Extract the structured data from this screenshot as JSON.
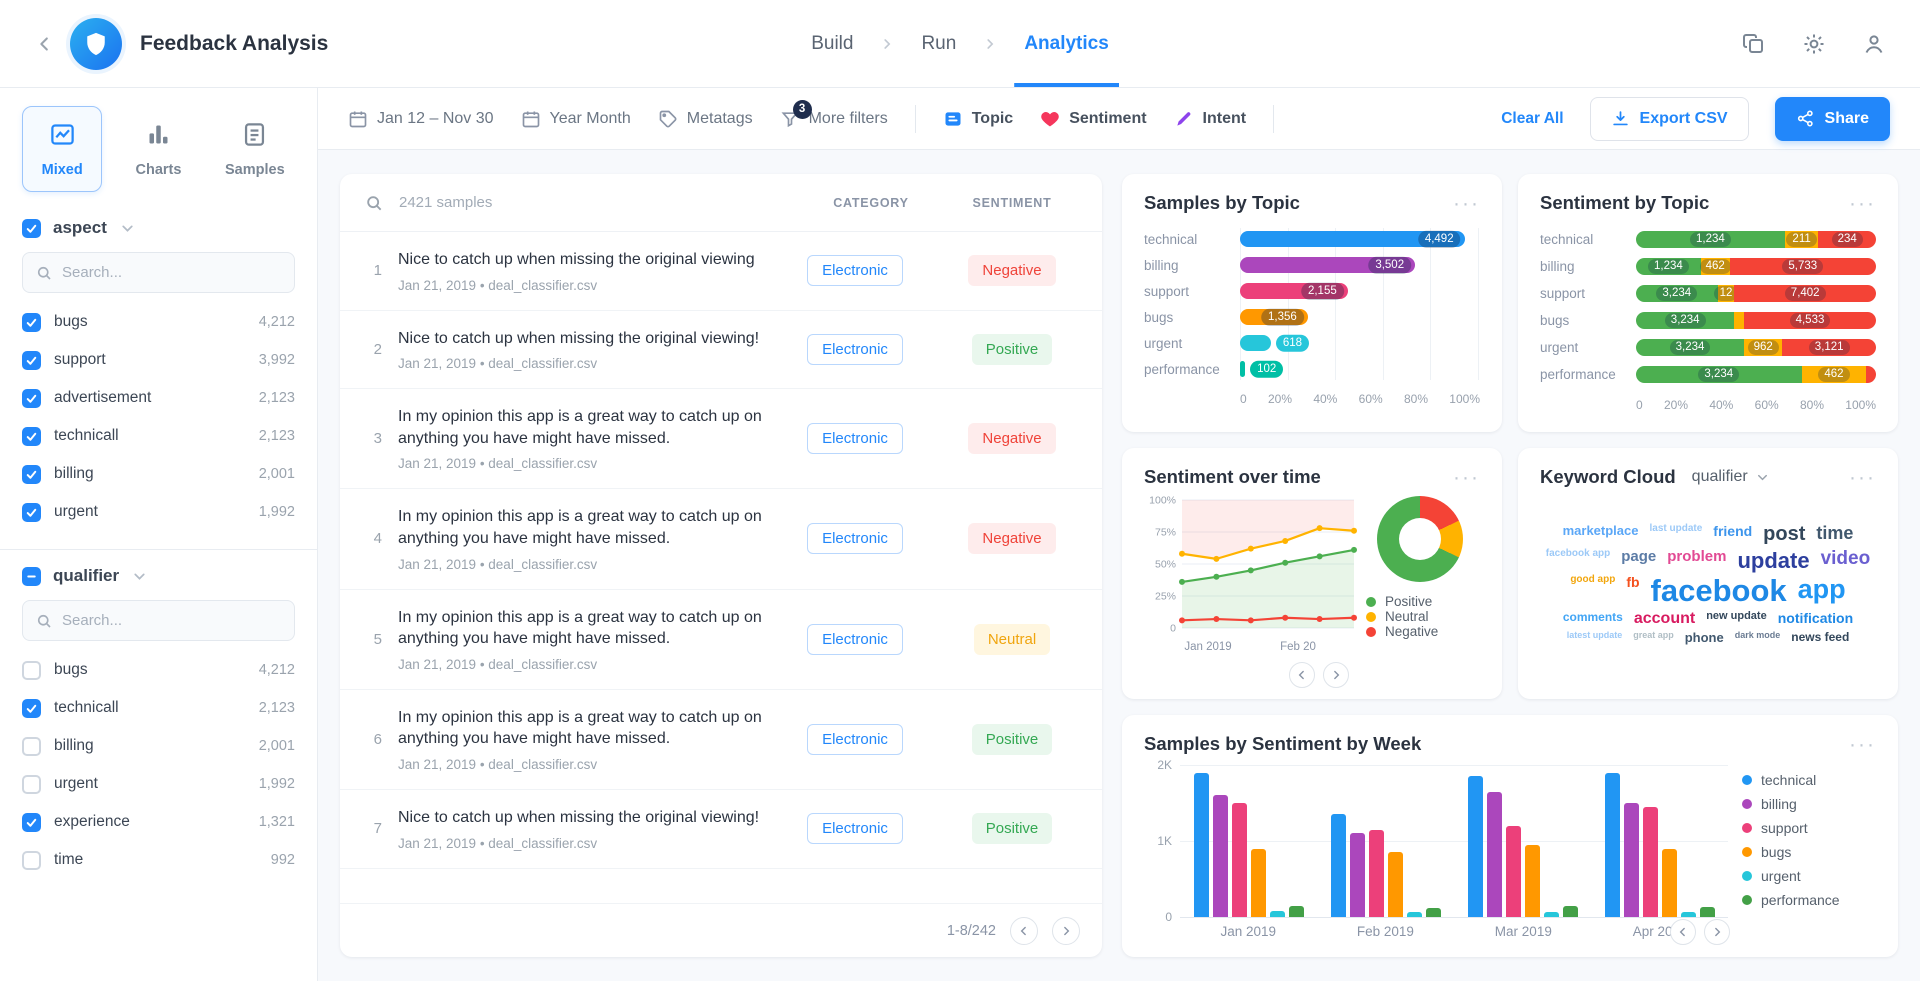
{
  "colors": {
    "accent": "#2287fa",
    "positive": "#4caf50",
    "neutral": "#ffb300",
    "negative": "#f44336"
  },
  "header": {
    "title": "Feedback Analysis",
    "nav": [
      {
        "label": "Build",
        "active": false
      },
      {
        "label": "Run",
        "active": false
      },
      {
        "label": "Analytics",
        "active": true
      }
    ]
  },
  "toolbar": {
    "date_range": "Jan 12 – Nov 30",
    "granularity": "Year Month",
    "metatags_label": "Metatags",
    "more_filters_label": "More filters",
    "more_filters_badge": "3",
    "facet_topic": "Topic",
    "facet_sentiment": "Sentiment",
    "facet_intent": "Intent",
    "clear_all_label": "Clear All",
    "export_label": "Export CSV",
    "share_label": "Share"
  },
  "sidebar": {
    "views": [
      {
        "label": "Mixed",
        "active": true
      },
      {
        "label": "Charts",
        "active": false
      },
      {
        "label": "Samples",
        "active": false
      }
    ],
    "groups": [
      {
        "label": "aspect",
        "state": "checked",
        "search_placeholder": "Search...",
        "items": [
          {
            "label": "bugs",
            "count": "4,212",
            "checked": true
          },
          {
            "label": "support",
            "count": "3,992",
            "checked": true
          },
          {
            "label": "advertisement",
            "count": "2,123",
            "checked": true
          },
          {
            "label": "technicall",
            "count": "2,123",
            "checked": true
          },
          {
            "label": "billing",
            "count": "2,001",
            "checked": true
          },
          {
            "label": "urgent",
            "count": "1,992",
            "checked": true
          }
        ]
      },
      {
        "label": "qualifier",
        "state": "indeterminate",
        "search_placeholder": "Search...",
        "items": [
          {
            "label": "bugs",
            "count": "4,212",
            "checked": false
          },
          {
            "label": "technicall",
            "count": "2,123",
            "checked": true
          },
          {
            "label": "billing",
            "count": "2,001",
            "checked": false
          },
          {
            "label": "urgent",
            "count": "1,992",
            "checked": false
          },
          {
            "label": "experience",
            "count": "1,321",
            "checked": true
          },
          {
            "label": "time",
            "count": "992",
            "checked": false
          }
        ]
      }
    ]
  },
  "samples": {
    "count_label": "2421 samples",
    "col_category": "CATEGORY",
    "col_sentiment": "SENTIMENT",
    "pagination": "1-8/242",
    "rows": [
      {
        "num": "1",
        "text": "Nice to catch up when missing the original viewing",
        "meta": "Jan 21, 2019 • deal_classifier.csv",
        "category": "Electronic",
        "sentiment": "Negative"
      },
      {
        "num": "2",
        "text": "Nice to catch up when missing the original viewing!",
        "meta": "Jan 21, 2019 • deal_classifier.csv",
        "category": "Electronic",
        "sentiment": "Positive"
      },
      {
        "num": "3",
        "text": "In my opinion this app is a great way to catch up on anything you have might have missed.",
        "meta": "Jan 21, 2019 • deal_classifier.csv",
        "category": "Electronic",
        "sentiment": "Negative"
      },
      {
        "num": "4",
        "text": "In my opinion this app is a great way to catch up on anything you have might have missed.",
        "meta": "Jan 21, 2019 • deal_classifier.csv",
        "category": "Electronic",
        "sentiment": "Negative"
      },
      {
        "num": "5",
        "text": "In my opinion this app is a great way to catch up on anything you have might have missed.",
        "meta": "Jan 21, 2019 • deal_classifier.csv",
        "category": "Electronic",
        "sentiment": "Neutral"
      },
      {
        "num": "6",
        "text": "In my opinion this app is a great way to catch up on anything you have might have missed.",
        "meta": "Jan 21, 2019 • deal_classifier.csv",
        "category": "Electronic",
        "sentiment": "Positive"
      },
      {
        "num": "7",
        "text": "Nice to catch up when missing the original viewing!",
        "meta": "Jan 21, 2019 • deal_classifier.csv",
        "category": "Electronic",
        "sentiment": "Positive"
      }
    ]
  },
  "panels": {
    "samples_by_topic": {
      "title": "Samples by Topic",
      "chart_data": {
        "type": "bar",
        "orientation": "horizontal",
        "categories": [
          "technical",
          "billing",
          "support",
          "bugs",
          "urgent",
          "performance"
        ],
        "values": [
          4492,
          3502,
          2155,
          1356,
          618,
          102
        ],
        "value_labels": [
          "4,492",
          "3,502",
          "2,155",
          "1,356",
          "618",
          "102"
        ],
        "bar_colors": [
          "#2196f3",
          "#ab47bc",
          "#ec407a",
          "#ff9800",
          "#26c6da",
          "#00bfa5"
        ],
        "x_ticks": [
          "0",
          "20%",
          "40%",
          "60%",
          "80%",
          "100%"
        ],
        "xlim": [
          0,
          4800
        ]
      }
    },
    "sentiment_by_topic": {
      "title": "Sentiment by Topic",
      "chart_data": {
        "type": "stacked-bar",
        "series_names": [
          "Positive",
          "Neutral",
          "Negative"
        ],
        "x_ticks": [
          "0",
          "20%",
          "40%",
          "60%",
          "80%",
          "100%"
        ],
        "rows": [
          {
            "label": "technical",
            "segments": [
              {
                "value": "1,234",
                "pct": 62,
                "sentiment": "positive"
              },
              {
                "value": "211",
                "pct": 14,
                "sentiment": "neutral"
              },
              {
                "value": "234",
                "pct": 24,
                "sentiment": "negative"
              }
            ]
          },
          {
            "label": "billing",
            "segments": [
              {
                "value": "1,234",
                "pct": 27,
                "sentiment": "positive"
              },
              {
                "value": "462",
                "pct": 12,
                "sentiment": "neutral"
              },
              {
                "value": "5,733",
                "pct": 61,
                "sentiment": "negative"
              }
            ]
          },
          {
            "label": "support",
            "segments": [
              {
                "value": "3,234",
                "pct": 34,
                "sentiment": "positive"
              },
              {
                "value": "12",
                "pct": 7,
                "sentiment": "neutral"
              },
              {
                "value": "7,402",
                "pct": 59,
                "sentiment": "negative"
              }
            ]
          },
          {
            "label": "bugs",
            "segments": [
              {
                "value": "3,234",
                "pct": 41,
                "sentiment": "positive"
              },
              {
                "value": "",
                "pct": 4,
                "sentiment": "neutral"
              },
              {
                "value": "4,533",
                "pct": 55,
                "sentiment": "negative"
              }
            ]
          },
          {
            "label": "urgent",
            "segments": [
              {
                "value": "3,234",
                "pct": 45,
                "sentiment": "positive"
              },
              {
                "value": "962",
                "pct": 16,
                "sentiment": "neutral"
              },
              {
                "value": "3,121",
                "pct": 39,
                "sentiment": "negative"
              }
            ]
          },
          {
            "label": "performance",
            "segments": [
              {
                "value": "3,234",
                "pct": 69,
                "sentiment": "positive"
              },
              {
                "value": "462",
                "pct": 27,
                "sentiment": "neutral"
              },
              {
                "value": "",
                "pct": 4,
                "sentiment": "negative"
              }
            ]
          }
        ]
      }
    },
    "sentiment_over_time": {
      "title": "Sentiment over time",
      "chart_data": {
        "type": "line",
        "y_ticks": [
          "100%",
          "75%",
          "50%",
          "25%",
          "0"
        ],
        "x_labels": [
          "Jan 2019",
          "Feb 20"
        ],
        "series": [
          {
            "name": "Neutral",
            "color": "#ffb300",
            "values": [
              58,
              54,
              62,
              68,
              78,
              76
            ]
          },
          {
            "name": "Positive",
            "color": "#4caf50",
            "values": [
              36,
              40,
              45,
              51,
              56,
              61
            ]
          },
          {
            "name": "Negative",
            "color": "#f44336",
            "values": [
              6,
              7,
              6,
              8,
              7,
              8
            ]
          }
        ],
        "donut": {
          "positive": 68,
          "neutral": 14,
          "negative": 18
        },
        "legend": [
          "Positive",
          "Neutral",
          "Negative"
        ]
      }
    },
    "keyword_cloud": {
      "title": "Keyword Cloud",
      "selector": "qualifier",
      "words": [
        {
          "text": "marketplace",
          "size": 13,
          "color": "#5ba7f7"
        },
        {
          "text": "last update",
          "size": 10,
          "color": "#9cc9f7"
        },
        {
          "text": "friend",
          "size": 14,
          "color": "#3d95ec"
        },
        {
          "text": "post",
          "size": 20,
          "color": "#33475b"
        },
        {
          "text": "time",
          "size": 18,
          "color": "#41586e"
        },
        {
          "text": "facebook app",
          "size": 10,
          "color": "#9cc9f7"
        },
        {
          "text": "page",
          "size": 15,
          "color": "#5c7ca6"
        },
        {
          "text": "problem",
          "size": 15,
          "color": "#e24a94"
        },
        {
          "text": "update",
          "size": 22,
          "color": "#2d3f9e"
        },
        {
          "text": "video",
          "size": 19,
          "color": "#6a5fd0"
        },
        {
          "text": "good app",
          "size": 10,
          "color": "#f2a60d"
        },
        {
          "text": "fb",
          "size": 14,
          "color": "#f4511e"
        },
        {
          "text": "facebook",
          "size": 31,
          "color": "#1e88e5"
        },
        {
          "text": "app",
          "size": 27,
          "color": "#2196f3"
        },
        {
          "text": "comments",
          "size": 12,
          "color": "#42a5f5"
        },
        {
          "text": "account",
          "size": 16,
          "color": "#d81b60"
        },
        {
          "text": "new update",
          "size": 11,
          "color": "#33475b"
        },
        {
          "text": "notification",
          "size": 14,
          "color": "#1e88e5"
        },
        {
          "text": "latest update",
          "size": 9,
          "color": "#9cc9f7"
        },
        {
          "text": "great app",
          "size": 9,
          "color": "#b0bec5"
        },
        {
          "text": "phone",
          "size": 13,
          "color": "#41586e"
        },
        {
          "text": "dark mode",
          "size": 9,
          "color": "#6b7c93"
        },
        {
          "text": "news feed",
          "size": 12,
          "color": "#33475b"
        }
      ]
    },
    "samples_by_week": {
      "title": "Samples by Sentiment by Week",
      "chart_data": {
        "type": "bar",
        "grouped": true,
        "categories": [
          "Jan 2019",
          "Feb 2019",
          "Mar 2019",
          "Apr 2019"
        ],
        "y_ticks": [
          "2K",
          "1K",
          "0"
        ],
        "ylim": [
          0,
          2000
        ],
        "series": [
          {
            "name": "technical",
            "color": "#2196f3",
            "values": [
              1900,
              1350,
              1850,
              1900
            ]
          },
          {
            "name": "billing",
            "color": "#ab47bc",
            "values": [
              1600,
              1100,
              1650,
              1500
            ]
          },
          {
            "name": "support",
            "color": "#ec407a",
            "values": [
              1500,
              1150,
              1200,
              1450
            ]
          },
          {
            "name": "bugs",
            "color": "#ff9800",
            "values": [
              900,
              850,
              950,
              900
            ]
          },
          {
            "name": "urgent",
            "color": "#26c6da",
            "values": [
              80,
              60,
              70,
              60
            ]
          },
          {
            "name": "performance",
            "color": "#43a047",
            "values": [
              150,
              120,
              140,
              130
            ]
          }
        ]
      }
    }
  }
}
